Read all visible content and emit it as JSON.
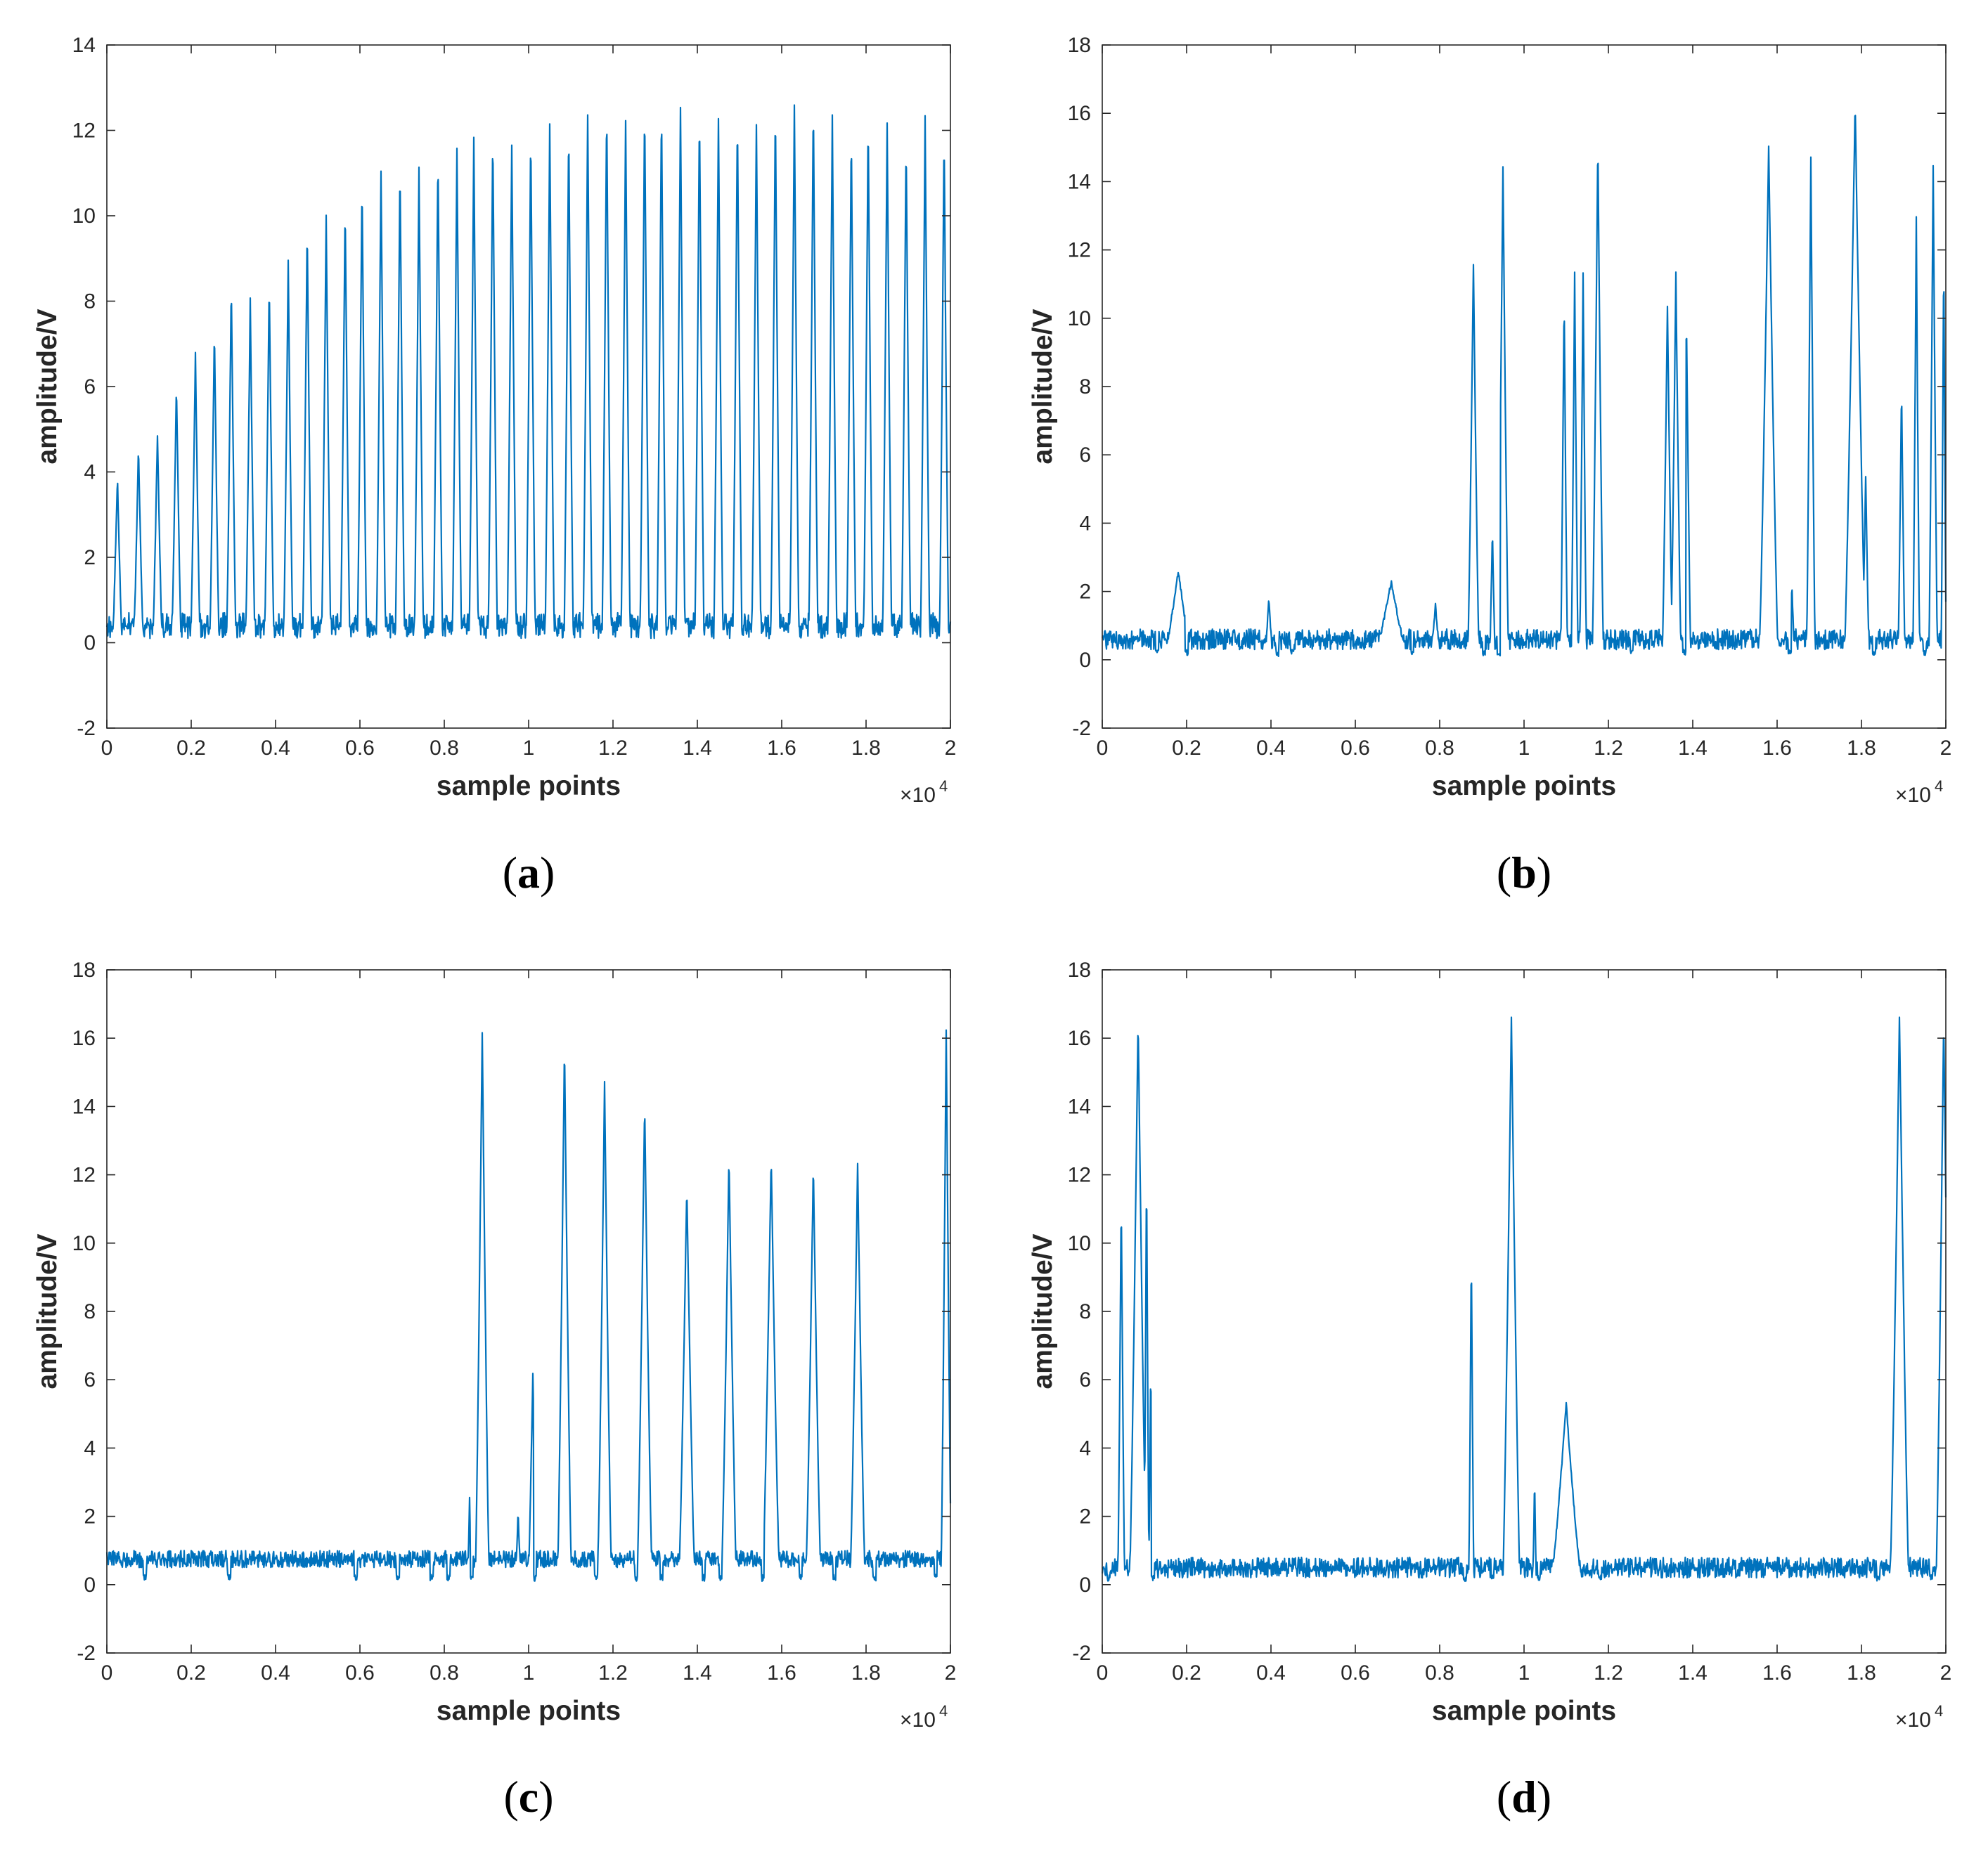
{
  "figure": {
    "colors": {
      "line": "#0072BD",
      "axes": "#262626",
      "background": "#ffffff"
    }
  },
  "chart_data": [
    {
      "id": "a",
      "type": "line",
      "panel_label": "a",
      "xlabel": "sample points",
      "ylabel": "amplitude/V",
      "xlim": [
        0,
        20000
      ],
      "ylim": [
        -2,
        14
      ],
      "xtick_values": [
        0,
        2000,
        4000,
        6000,
        8000,
        10000,
        12000,
        14000,
        16000,
        18000,
        20000
      ],
      "xtick_labels": [
        "0",
        "0.2",
        "0.4",
        "0.6",
        "0.8",
        "1",
        "1.2",
        "1.4",
        "1.6",
        "1.8",
        "2"
      ],
      "x_exponent_label": "×10",
      "x_exponent_power": "4",
      "yticks": [
        -2,
        0,
        2,
        4,
        6,
        8,
        10,
        12,
        14
      ],
      "baseline": {
        "low": 0.1,
        "high": 0.7,
        "dense_noise": true
      },
      "series": [
        {
          "pulses": [
            [
              250,
              3.9
            ],
            [
              750,
              4.6
            ],
            [
              1200,
              4.9
            ],
            [
              1650,
              6.1
            ],
            [
              2100,
              6.8
            ],
            [
              2550,
              7.3
            ],
            [
              2950,
              8.4
            ],
            [
              3400,
              8.0
            ],
            [
              3850,
              8.5
            ],
            [
              4300,
              8.9
            ],
            [
              4750,
              9.8
            ],
            [
              5200,
              10.0
            ],
            [
              5650,
              10.3
            ],
            [
              6050,
              10.8
            ],
            [
              6500,
              11.1
            ],
            [
              6950,
              11.2
            ],
            [
              7400,
              11.1
            ],
            [
              7850,
              11.5
            ],
            [
              8300,
              11.6
            ],
            [
              8700,
              11.8
            ],
            [
              9150,
              12.0
            ],
            [
              9600,
              11.7
            ],
            [
              10050,
              12.0
            ],
            [
              10500,
              12.1
            ],
            [
              10950,
              12.1
            ],
            [
              11400,
              12.4
            ],
            [
              11850,
              12.6
            ],
            [
              12300,
              12.3
            ],
            [
              12750,
              12.6
            ],
            [
              13150,
              12.6
            ],
            [
              13600,
              12.6
            ],
            [
              14050,
              12.5
            ],
            [
              14500,
              12.3
            ],
            [
              14950,
              12.4
            ],
            [
              15400,
              12.2
            ],
            [
              15850,
              12.6
            ],
            [
              16300,
              12.6
            ],
            [
              16750,
              12.7
            ],
            [
              17200,
              12.3
            ],
            [
              17650,
              12.0
            ],
            [
              18050,
              12.3
            ],
            [
              18500,
              12.2
            ],
            [
              18950,
              11.9
            ],
            [
              19400,
              12.3
            ],
            [
              19850,
              12.0
            ]
          ],
          "pulse_half_width": 110
        }
      ]
    },
    {
      "id": "b",
      "type": "line",
      "panel_label": "b",
      "xlabel": "sample points",
      "ylabel": "amplitude/V",
      "xlim": [
        0,
        20000
      ],
      "ylim": [
        -2,
        18
      ],
      "xtick_values": [
        0,
        2000,
        4000,
        6000,
        8000,
        10000,
        12000,
        14000,
        16000,
        18000,
        20000
      ],
      "xtick_labels": [
        "0",
        "0.2",
        "0.4",
        "0.6",
        "0.8",
        "1",
        "1.2",
        "1.4",
        "1.6",
        "1.8",
        "2"
      ],
      "x_exponent_label": "×10",
      "x_exponent_power": "4",
      "yticks": [
        -2,
        0,
        2,
        4,
        6,
        8,
        10,
        12,
        14,
        16,
        18
      ],
      "baseline": {
        "low": 0.3,
        "high": 0.9,
        "dense_noise": true
      },
      "series": [
        {
          "pulses": [
            [
              1800,
              2.6,
              300
            ],
            [
              3950,
              1.8,
              80
            ],
            [
              6850,
              2.3,
              350
            ],
            [
              7900,
              1.6,
              100
            ],
            [
              8800,
              11.6,
              130
            ],
            [
              9250,
              3.9,
              60
            ],
            [
              9500,
              14.4,
              130
            ],
            [
              10950,
              10.7,
              80
            ],
            [
              11200,
              11.3,
              80
            ],
            [
              11400,
              11.3,
              80
            ],
            [
              11750,
              15.3,
              130
            ],
            [
              13400,
              10.4,
              120
            ],
            [
              13600,
              11.3,
              120
            ],
            [
              13850,
              10.1,
              100
            ],
            [
              15800,
              15.0,
              220
            ],
            [
              16350,
              2.2,
              60
            ],
            [
              16800,
              14.7,
              100
            ],
            [
              17850,
              16.3,
              250
            ],
            [
              18100,
              5.4,
              80
            ],
            [
              18950,
              8.0,
              80
            ],
            [
              19300,
              12.9,
              80
            ],
            [
              19700,
              14.4,
              100
            ],
            [
              19950,
              12.0,
              60
            ]
          ],
          "dips": [
            [
              1300,
              0.1
            ],
            [
              2000,
              0.1
            ],
            [
              4150,
              0.1
            ],
            [
              4500,
              0.1
            ],
            [
              7350,
              0.1
            ],
            [
              9050,
              0.1
            ],
            [
              9400,
              0.1
            ],
            [
              12550,
              0.1
            ],
            [
              13800,
              0.1
            ],
            [
              16300,
              0.1
            ],
            [
              18300,
              0.1
            ],
            [
              19500,
              0.1
            ]
          ]
        }
      ]
    },
    {
      "id": "c",
      "type": "line",
      "panel_label": "c",
      "xlabel": "sample points",
      "ylabel": "amplitude/V",
      "xlim": [
        0,
        20000
      ],
      "ylim": [
        -2,
        18
      ],
      "xtick_values": [
        0,
        2000,
        4000,
        6000,
        8000,
        10000,
        12000,
        14000,
        16000,
        18000,
        20000
      ],
      "xtick_labels": [
        "0",
        "0.2",
        "0.4",
        "0.6",
        "0.8",
        "1",
        "1.2",
        "1.4",
        "1.6",
        "1.8",
        "2"
      ],
      "x_exponent_label": "×10",
      "x_exponent_power": "4",
      "yticks": [
        -2,
        0,
        2,
        4,
        6,
        8,
        10,
        12,
        14,
        16,
        18
      ],
      "baseline": {
        "low": 0.5,
        "high": 1.0,
        "dense_noise": true
      },
      "series": [
        {
          "pulses": [
            [
              8600,
              2.5,
              40
            ],
            [
              8900,
              16.2,
              160
            ],
            [
              9750,
              2.2,
              50
            ],
            [
              10100,
              6.2,
              100
            ],
            [
              10850,
              15.8,
              160
            ],
            [
              11800,
              14.7,
              160
            ],
            [
              12750,
              14.1,
              170
            ],
            [
              13750,
              11.7,
              180
            ],
            [
              14750,
              12.6,
              170
            ],
            [
              15750,
              12.5,
              190
            ],
            [
              16750,
              12.3,
              170
            ],
            [
              17800,
              12.3,
              170
            ],
            [
              19900,
              16.3,
              120
            ]
          ],
          "dips": [
            [
              900,
              0.1
            ],
            [
              2900,
              0.1
            ],
            [
              5900,
              0.1
            ],
            [
              6900,
              0.1
            ],
            [
              7700,
              0.1
            ],
            [
              8100,
              0.1
            ],
            [
              8650,
              0.1
            ],
            [
              10150,
              0.1
            ],
            [
              11600,
              0.1
            ],
            [
              12550,
              0.1
            ],
            [
              13150,
              0.1
            ],
            [
              14150,
              0.1
            ],
            [
              14550,
              0.1
            ],
            [
              15550,
              0.1
            ],
            [
              16450,
              0.1
            ],
            [
              17250,
              0.1
            ],
            [
              18200,
              0.1
            ],
            [
              19650,
              0.1
            ]
          ]
        }
      ]
    },
    {
      "id": "d",
      "type": "line",
      "panel_label": "d",
      "xlabel": "sample points",
      "ylabel": "amplitude/V",
      "xlim": [
        0,
        20000
      ],
      "ylim": [
        -2,
        18
      ],
      "xtick_values": [
        0,
        2000,
        4000,
        6000,
        8000,
        10000,
        12000,
        14000,
        16000,
        18000,
        20000
      ],
      "xtick_labels": [
        "0",
        "0.2",
        "0.4",
        "0.6",
        "0.8",
        "1",
        "1.2",
        "1.4",
        "1.6",
        "1.8",
        "2"
      ],
      "x_exponent_label": "×10",
      "x_exponent_power": "4",
      "yticks": [
        -2,
        0,
        2,
        4,
        6,
        8,
        10,
        12,
        14,
        16,
        18
      ],
      "baseline": {
        "low": 0.2,
        "high": 0.8,
        "dense_noise": true
      },
      "series": [
        {
          "pulses": [
            [
              450,
              11.4,
              80
            ],
            [
              850,
              16.6,
              200
            ],
            [
              1050,
              12.3,
              60
            ],
            [
              1150,
              6.5,
              50
            ],
            [
              8750,
              9.9,
              60
            ],
            [
              9700,
              16.6,
              200
            ],
            [
              10250,
              3.1,
              40
            ],
            [
              11000,
              5.3,
              350
            ],
            [
              18900,
              16.6,
              220
            ],
            [
              19950,
              16.6,
              180
            ]
          ],
          "dips": [
            [
              150,
              0.1
            ],
            [
              1200,
              0.1
            ],
            [
              8600,
              0.1
            ],
            [
              9250,
              0.1
            ],
            [
              10350,
              0.1
            ],
            [
              11800,
              0.1
            ],
            [
              18400,
              0.1
            ],
            [
              19650,
              0.1
            ]
          ]
        }
      ]
    }
  ]
}
